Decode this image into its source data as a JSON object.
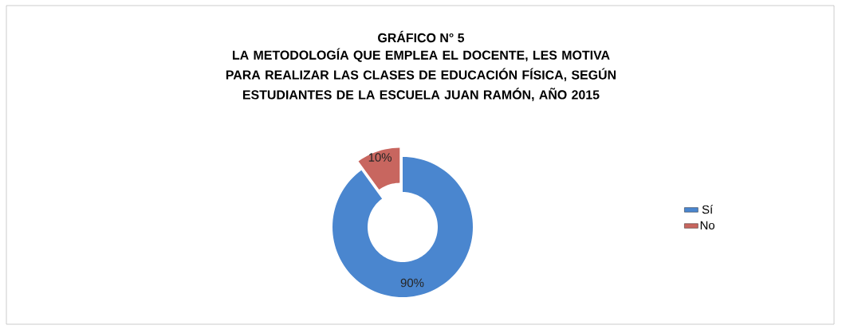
{
  "chart_data": {
    "type": "donut",
    "title": "GRÁFICO N° 5",
    "subtitle": "LA METODOLOGÍA QUE EMPLEA EL DOCENTE, LES MOTIVA PARA REALIZAR LAS CLASES DE EDUCACIÓN FÍSICA, SEGÚN ESTUDIANTES DE LA ESCUELA JUAN RAMÓN, AÑO 2015",
    "categories": [
      "Sí",
      "No"
    ],
    "values": [
      90,
      10
    ],
    "colors": [
      "#4a86cf",
      "#c8665f"
    ],
    "value_labels": [
      "90%",
      "10%"
    ],
    "legend": "right"
  }
}
